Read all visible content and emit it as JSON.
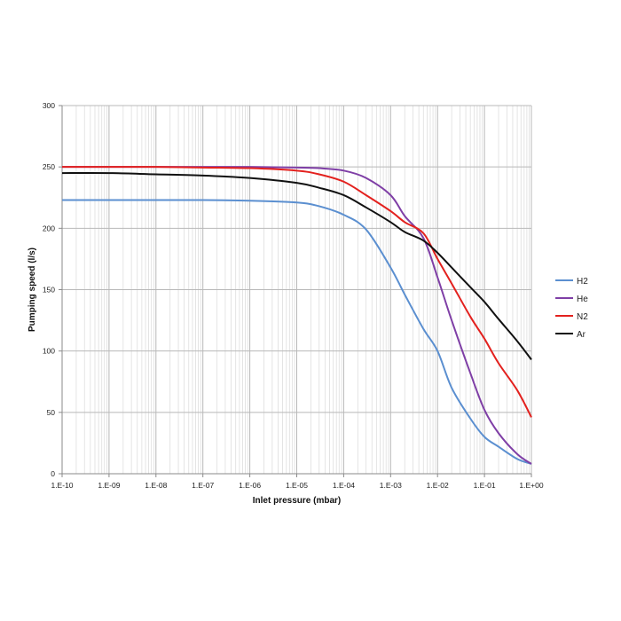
{
  "chart_data": {
    "type": "line",
    "xlabel": "Inlet pressure (mbar)",
    "ylabel": "Pumping speed (l/s)",
    "x_scale": "log",
    "xlim": [
      1e-10,
      1
    ],
    "ylim": [
      0,
      300
    ],
    "grid": true,
    "legend_position": "right",
    "x_tick_labels": [
      "1.E-10",
      "1.E-09",
      "1.E-08",
      "1.E-07",
      "1.E-06",
      "1.E-05",
      "1.E-04",
      "1.E-03",
      "1.E-02",
      "1.E-01",
      "1.E+00"
    ],
    "x_ticks": [
      1e-10,
      1e-09,
      1e-08,
      1e-07,
      1e-06,
      1e-05,
      0.0001,
      0.001,
      0.01,
      0.1,
      1
    ],
    "y_ticks": [
      0,
      50,
      100,
      150,
      200,
      250,
      300
    ],
    "y_tick_labels": [
      "0",
      "50",
      "100",
      "150",
      "200",
      "250",
      "300"
    ],
    "x": [
      1e-10,
      1e-09,
      1e-08,
      1e-07,
      1e-06,
      1e-05,
      3e-05,
      0.0001,
      0.0003,
      0.001,
      0.002,
      0.005,
      0.01,
      0.02,
      0.05,
      0.1,
      0.2,
      0.5,
      1
    ],
    "series": [
      {
        "name": "H2",
        "color": "#5b8fd0",
        "values": [
          223,
          223,
          223,
          223,
          222.5,
          221,
          218,
          211,
          199,
          168,
          146,
          118,
          100,
          70,
          45,
          30,
          22,
          12,
          8
        ]
      },
      {
        "name": "He",
        "color": "#7f3fa6",
        "values": [
          250,
          250,
          250,
          250,
          250,
          249.5,
          249,
          247,
          241,
          227,
          210,
          192,
          160,
          125,
          82,
          52,
          33,
          16,
          8
        ]
      },
      {
        "name": "N2",
        "color": "#e3211e",
        "values": [
          250,
          250,
          250,
          249.5,
          249,
          247,
          244,
          238,
          227,
          214,
          205,
          196,
          175,
          155,
          128,
          110,
          90,
          68,
          46
        ]
      },
      {
        "name": "Ar",
        "color": "#111111",
        "values": [
          245,
          245,
          244,
          243,
          241,
          237,
          233,
          227,
          217,
          205,
          197,
          190,
          180,
          168,
          152,
          140,
          126,
          108,
          93
        ]
      }
    ]
  }
}
